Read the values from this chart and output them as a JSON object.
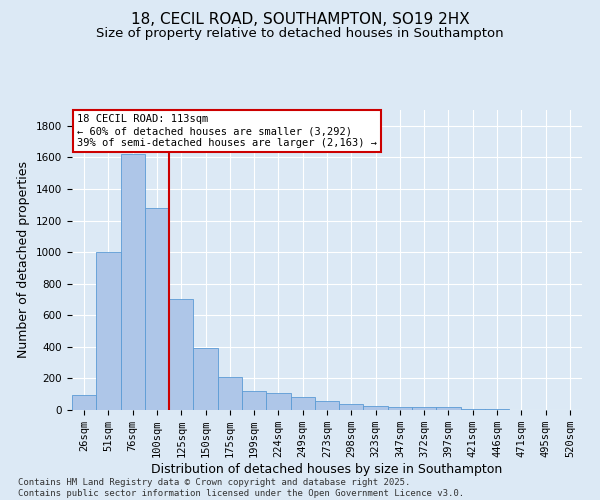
{
  "title_line1": "18, CECIL ROAD, SOUTHAMPTON, SO19 2HX",
  "title_line2": "Size of property relative to detached houses in Southampton",
  "xlabel": "Distribution of detached houses by size in Southampton",
  "ylabel": "Number of detached properties",
  "categories": [
    "26sqm",
    "51sqm",
    "76sqm",
    "100sqm",
    "125sqm",
    "150sqm",
    "175sqm",
    "199sqm",
    "224sqm",
    "249sqm",
    "273sqm",
    "298sqm",
    "323sqm",
    "347sqm",
    "372sqm",
    "397sqm",
    "421sqm",
    "446sqm",
    "471sqm",
    "495sqm",
    "520sqm"
  ],
  "values": [
    95,
    1000,
    1620,
    1280,
    700,
    390,
    210,
    120,
    105,
    85,
    55,
    40,
    28,
    22,
    18,
    18,
    8,
    5,
    2,
    2,
    2
  ],
  "bar_color": "#aec6e8",
  "bar_edge_color": "#5b9bd5",
  "vline_color": "#cc0000",
  "vline_pos": 3.5,
  "annotation_text": "18 CECIL ROAD: 113sqm\n← 60% of detached houses are smaller (3,292)\n39% of semi-detached houses are larger (2,163) →",
  "annotation_box_facecolor": "#ffffff",
  "annotation_box_edgecolor": "#cc0000",
  "ylim": [
    0,
    1900
  ],
  "yticks": [
    0,
    200,
    400,
    600,
    800,
    1000,
    1200,
    1400,
    1600,
    1800
  ],
  "background_color": "#dce9f5",
  "grid_color": "#ffffff",
  "footnote": "Contains HM Land Registry data © Crown copyright and database right 2025.\nContains public sector information licensed under the Open Government Licence v3.0.",
  "title_fontsize": 11,
  "subtitle_fontsize": 9.5,
  "tick_fontsize": 7.5,
  "label_fontsize": 9,
  "annotation_fontsize": 7.5,
  "footnote_fontsize": 6.5
}
